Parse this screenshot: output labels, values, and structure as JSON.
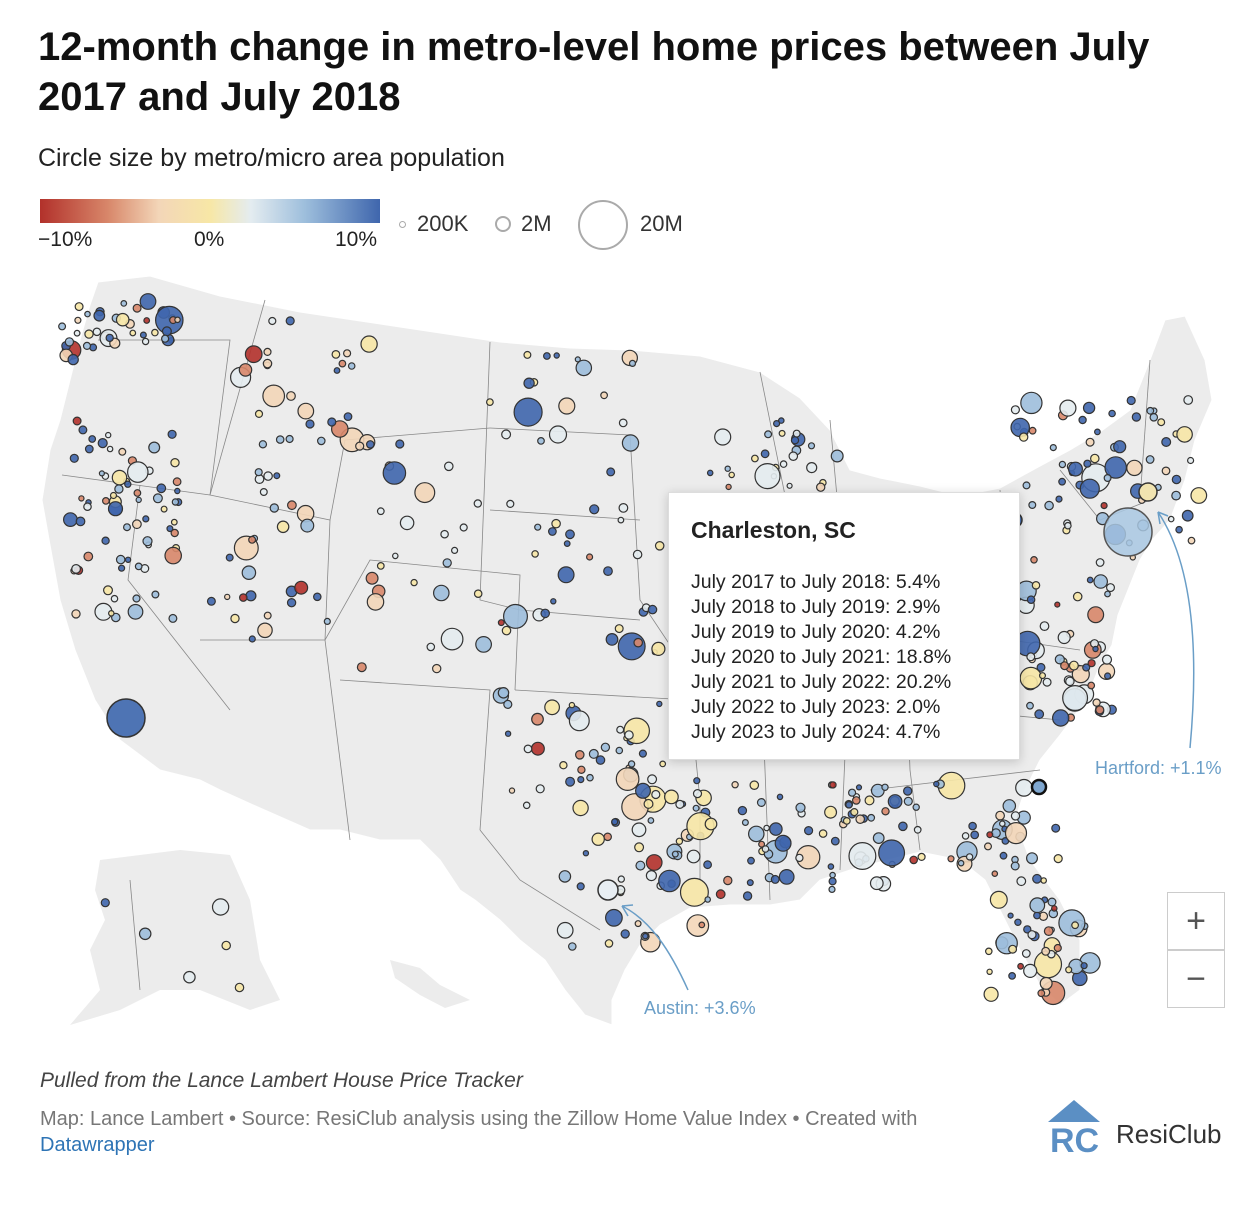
{
  "title": "12-month change in metro-level home prices between July 2017 and July 2018",
  "subtitle": "Circle size by metro/micro area population",
  "legend": {
    "color_min": "−10%",
    "color_mid": "0%",
    "color_max": "10%",
    "size_small": "200K",
    "size_medium": "2M",
    "size_large": "20M",
    "colors": [
      "#b2312b",
      "#d8876a",
      "#f3d6b8",
      "#f7e7a6",
      "#e4ecf0",
      "#9dbedc",
      "#3f66ad"
    ]
  },
  "tooltip": {
    "metro": "Charleston, SC",
    "rows": [
      "July 2017 to July 2018: 5.4%",
      "July 2018 to July 2019: 2.9%",
      "July 2019 to July 2020: 4.2%",
      "July 2020 to July 2021: 18.8%",
      "July 2021 to July 2022: 20.2%",
      "July 2022 to July 2023: 2.0%",
      "July 2023 to July 2024: 4.7%"
    ]
  },
  "annotations": {
    "hartford": "Hartford: +1.1%",
    "austin": "Austin: +3.6%"
  },
  "zoom": {
    "in": "+",
    "out": "−"
  },
  "notes": "Pulled from the Lance Lambert House Price Tracker",
  "credit": {
    "text": "Map: Lance Lambert • Source: ResiClub analysis using the Zillow Home Value Index • Created with",
    "tool": "Datawrapper"
  },
  "logo": {
    "mark": "RC",
    "name": "ResiClub"
  },
  "highlighted_metros": [
    {
      "name": "Charleston, SC",
      "change": 5.4
    },
    {
      "name": "Hartford",
      "change": 1.1
    },
    {
      "name": "Austin",
      "change": 3.6
    }
  ]
}
